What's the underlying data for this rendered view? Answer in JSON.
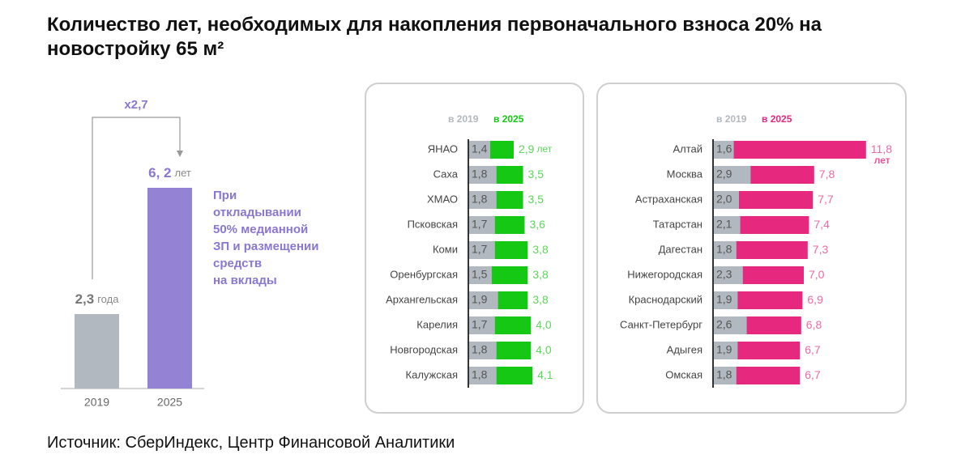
{
  "title": "Количество лет, необходимых для накопления первоначального взноса 20% на новостройку 65 м²",
  "source": "Источник: СберИндекс, Центр Финансовой Аналитики",
  "chart_data": [
    {
      "type": "bar",
      "categories": [
        "2019",
        "2025"
      ],
      "values": [
        2.3,
        6.2
      ],
      "value_labels": [
        "2,3",
        "6, 2"
      ],
      "units": [
        "года",
        "лет"
      ],
      "colors": [
        "#b2b8bf",
        "#9483d4"
      ],
      "annotation": "x2,7",
      "note": [
        "При",
        "откладывании",
        "50% медианной",
        "ЗП и размещении",
        "средств",
        "на вклады"
      ]
    },
    {
      "type": "hbar",
      "unit": "лет",
      "unit_placement": "inline",
      "categories": [
        "ЯНАО",
        "Саха",
        "ХМАО",
        "Псковская",
        "Коми",
        "Оренбургская",
        "Архангельская",
        "Карелия",
        "Новгородская",
        "Калужская"
      ],
      "series": [
        {
          "name": "в 2019",
          "color": "#b2b8bf",
          "values": [
            1.4,
            1.8,
            1.8,
            1.7,
            1.7,
            1.5,
            1.9,
            1.7,
            1.8,
            1.8
          ],
          "value_labels": [
            "1,4",
            "1,8",
            "1,8",
            "1,7",
            "1,7",
            "1,5",
            "1,9",
            "1,7",
            "1,8",
            "1,8"
          ]
        },
        {
          "name": "в 2025",
          "color": "#14c814",
          "values": [
            2.9,
            3.5,
            3.5,
            3.6,
            3.8,
            3.8,
            3.8,
            4.0,
            4.0,
            4.1
          ],
          "value_labels": [
            "2,9",
            "3,5",
            "3,5",
            "3,6",
            "3,8",
            "3,8",
            "3,8",
            "4,0",
            "4,0",
            "4,1"
          ]
        }
      ]
    },
    {
      "type": "hbar",
      "unit": "лет",
      "unit_placement": "below",
      "categories": [
        "Алтай",
        "Москва",
        "Астраханская",
        "Татарстан",
        "Дагестан",
        "Нижегородская",
        "Краснодарский",
        "Санкт-Петербург",
        "Адыгея",
        "Омская"
      ],
      "series": [
        {
          "name": "в 2019",
          "color": "#b2b8bf",
          "values": [
            1.6,
            2.9,
            2.0,
            2.1,
            1.8,
            2.3,
            1.9,
            2.6,
            1.9,
            1.8
          ],
          "value_labels": [
            "1,6",
            "2,9",
            "2,0",
            "2,1",
            "1,8",
            "2,3",
            "1,9",
            "2,6",
            "1,9",
            "1,8"
          ]
        },
        {
          "name": "в 2025",
          "color": "#e6287f",
          "values": [
            11.8,
            7.8,
            7.7,
            7.4,
            7.3,
            7.0,
            6.9,
            6.8,
            6.7,
            6.7
          ],
          "value_labels": [
            "11,8",
            "7,8",
            "7,7",
            "7,4",
            "7,3",
            "7,0",
            "6,9",
            "6,8",
            "6,7",
            "6,7"
          ]
        }
      ]
    }
  ]
}
